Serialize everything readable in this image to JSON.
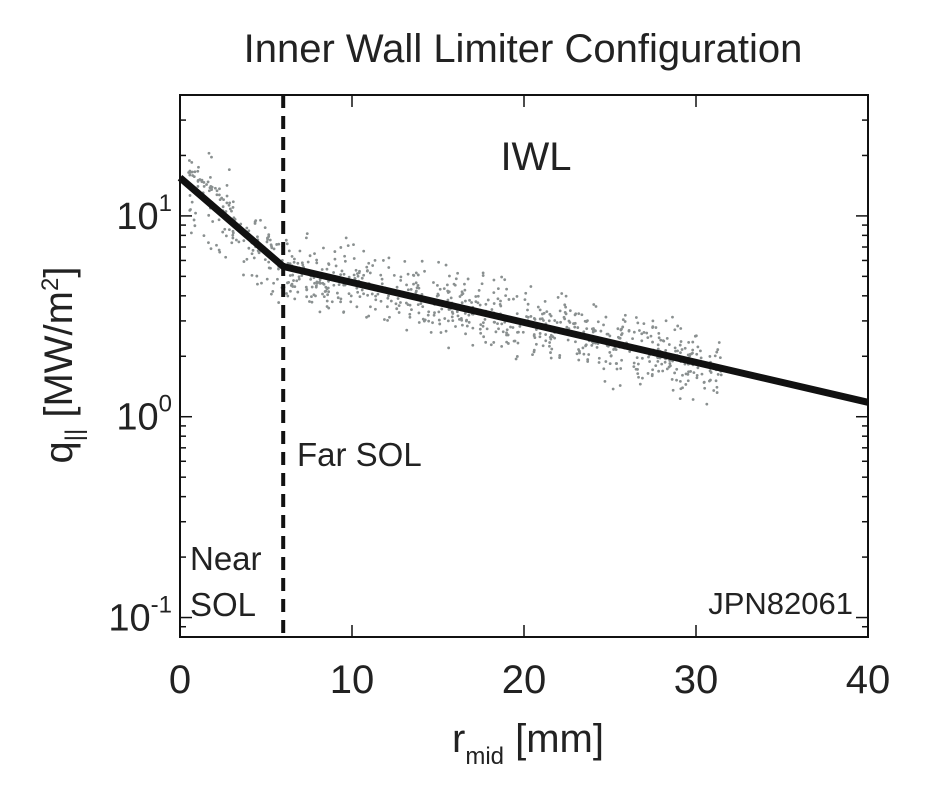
{
  "chart_data": {
    "type": "scatter",
    "title": "Inner Wall Limiter Configuration",
    "xlabel": {
      "main": "r",
      "sub": "mid",
      "unit": " [mm]"
    },
    "ylabel": {
      "main": "q",
      "sub": "||",
      "unit": " [MW/m",
      "sup": "2",
      "close": "]"
    },
    "x_ticks": [
      {
        "value": 0,
        "label": "0"
      },
      {
        "value": 10,
        "label": "10"
      },
      {
        "value": 20,
        "label": "20"
      },
      {
        "value": 30,
        "label": "30"
      },
      {
        "value": 40,
        "label": "40"
      }
    ],
    "y_ticks": [
      {
        "value": 0.1,
        "base": "10",
        "exp": "-1"
      },
      {
        "value": 1,
        "base": "10",
        "exp": "0"
      },
      {
        "value": 10,
        "base": "10",
        "exp": "1"
      }
    ],
    "xlim": [
      0,
      40
    ],
    "ylim": [
      0.08,
      40
    ],
    "y_scale": "log",
    "grid": false,
    "annotations": {
      "config_label": "IWL",
      "far_sol": "Far SOL",
      "near_sol_line1": "Near",
      "near_sol_line2": "SOL",
      "shot": "JPN82061"
    },
    "separator_x": 6,
    "fit_line": {
      "name": "fit",
      "points": [
        {
          "x": 0,
          "y": 15.5
        },
        {
          "x": 6,
          "y": 5.6
        },
        {
          "x": 40,
          "y": 1.18
        }
      ]
    },
    "measurement_region": {
      "x_range": [
        0.5,
        31.5
      ],
      "description_note": ""
    },
    "colors": {
      "fit": "#111111",
      "data": "#8a9090",
      "separator": "#111111"
    }
  }
}
